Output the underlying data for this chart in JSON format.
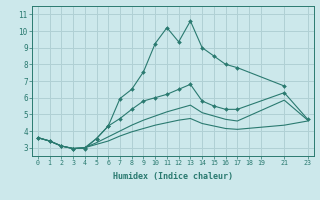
{
  "xlabel": "Humidex (Indice chaleur)",
  "bg_color": "#cce8eb",
  "grid_color": "#b0d0d4",
  "line_color": "#2a7a70",
  "xlim": [
    -0.5,
    23.5
  ],
  "ylim": [
    2.5,
    11.5
  ],
  "xticks": [
    0,
    1,
    2,
    3,
    4,
    5,
    6,
    7,
    8,
    9,
    10,
    11,
    12,
    13,
    14,
    15,
    16,
    17,
    18,
    19,
    21,
    23
  ],
  "yticks": [
    3,
    4,
    5,
    6,
    7,
    8,
    9,
    10,
    11
  ],
  "lines": [
    {
      "x": [
        0,
        1,
        2,
        3,
        4,
        5,
        6,
        7,
        8,
        9,
        10,
        11,
        12,
        13,
        14,
        15,
        16,
        17,
        21
      ],
      "y": [
        3.6,
        3.4,
        3.1,
        2.95,
        2.95,
        3.55,
        4.3,
        5.95,
        6.5,
        7.55,
        9.25,
        10.2,
        9.35,
        10.6,
        9.0,
        8.5,
        8.0,
        7.8,
        6.7
      ],
      "has_markers": true
    },
    {
      "x": [
        0,
        1,
        2,
        3,
        4,
        5,
        6,
        7,
        8,
        9,
        10,
        11,
        12,
        13,
        14,
        15,
        16,
        17,
        21,
        23
      ],
      "y": [
        3.6,
        3.4,
        3.1,
        2.95,
        3.0,
        3.55,
        4.3,
        4.75,
        5.3,
        5.8,
        6.0,
        6.2,
        6.5,
        6.8,
        5.8,
        5.5,
        5.3,
        5.3,
        6.3,
        4.7
      ],
      "has_markers": true
    },
    {
      "x": [
        0,
        1,
        2,
        3,
        4,
        5,
        6,
        7,
        8,
        9,
        10,
        11,
        12,
        13,
        14,
        15,
        16,
        17,
        21,
        23
      ],
      "y": [
        3.6,
        3.4,
        3.1,
        2.95,
        3.0,
        3.3,
        3.65,
        4.0,
        4.35,
        4.65,
        4.9,
        5.15,
        5.35,
        5.55,
        5.1,
        4.9,
        4.7,
        4.6,
        5.85,
        4.65
      ],
      "has_markers": false
    },
    {
      "x": [
        0,
        1,
        2,
        3,
        4,
        5,
        6,
        7,
        8,
        9,
        10,
        11,
        12,
        13,
        14,
        15,
        16,
        17,
        21,
        23
      ],
      "y": [
        3.6,
        3.4,
        3.1,
        2.95,
        3.0,
        3.2,
        3.4,
        3.7,
        3.95,
        4.15,
        4.35,
        4.5,
        4.65,
        4.75,
        4.45,
        4.3,
        4.15,
        4.1,
        4.35,
        4.6
      ],
      "has_markers": false
    }
  ]
}
